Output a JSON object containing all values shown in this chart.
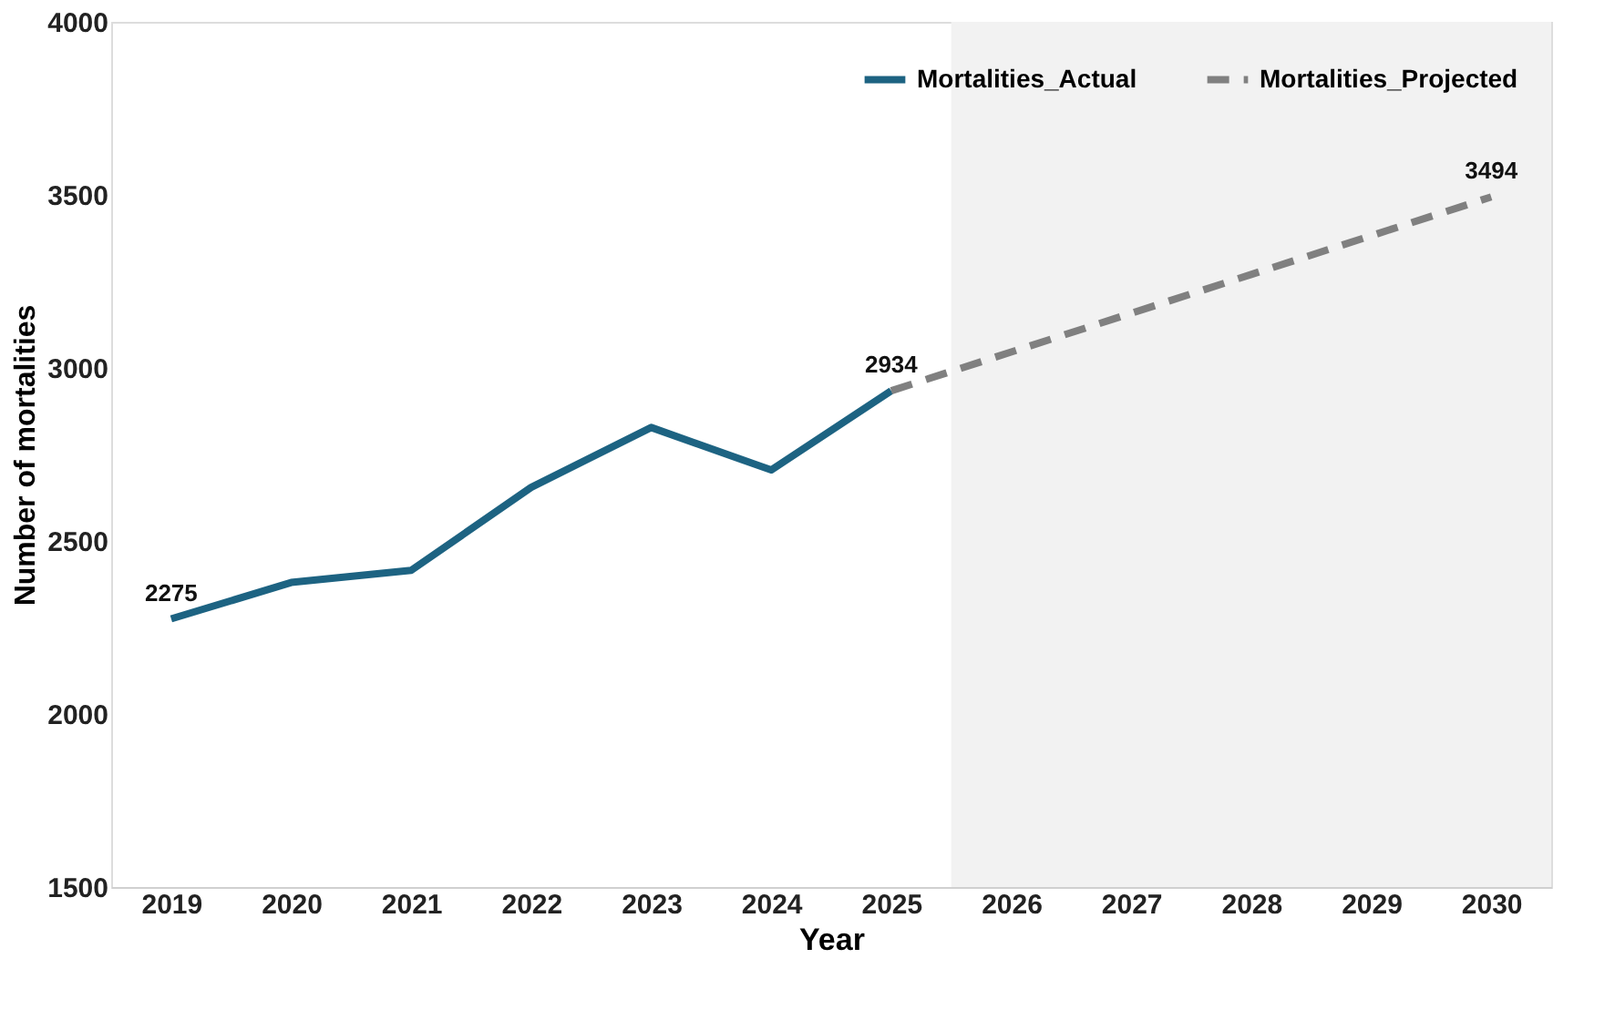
{
  "chart_data": {
    "type": "line",
    "xlabel": "Year",
    "ylabel": "Number of mortalities",
    "categories": [
      "2019",
      "2020",
      "2021",
      "2022",
      "2023",
      "2024",
      "2025",
      "2026",
      "2027",
      "2028",
      "2029",
      "2030"
    ],
    "series": [
      {
        "name": "Mortalities_Actual",
        "color": "#1d6382",
        "line_style": "solid",
        "values": [
          2275,
          2380,
          2415,
          2655,
          2828,
          2705,
          2934,
          null,
          null,
          null,
          null,
          null
        ],
        "value_labels": [
          "2275",
          null,
          null,
          null,
          null,
          null,
          "2934",
          null,
          null,
          null,
          null,
          null
        ]
      },
      {
        "name": "Mortalities_Projected",
        "color": "#808080",
        "line_style": "dashed",
        "values": [
          null,
          null,
          null,
          null,
          null,
          null,
          2934,
          3046,
          3158,
          3270,
          3382,
          3494
        ],
        "value_labels": [
          null,
          null,
          null,
          null,
          null,
          null,
          null,
          null,
          null,
          null,
          null,
          "3494"
        ]
      }
    ],
    "bands": [
      {
        "axis": "x",
        "from": "2026",
        "to": "2030",
        "color": "#f2f2f2"
      }
    ],
    "ylim": [
      1500,
      4000
    ],
    "yticks": [
      1500,
      2000,
      2500,
      3000,
      3500,
      4000
    ],
    "grid": false,
    "legend": "top right",
    "marker": "none"
  }
}
